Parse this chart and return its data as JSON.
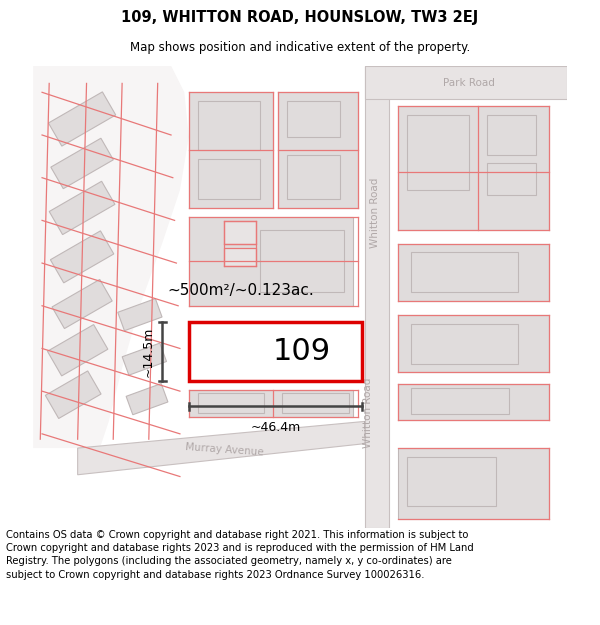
{
  "title_line1": "109, WHITTON ROAD, HOUNSLOW, TW3 2EJ",
  "title_line2": "Map shows position and indicative extent of the property.",
  "footer_text": "Contains OS data © Crown copyright and database right 2021. This information is subject to Crown copyright and database rights 2023 and is reproduced with the permission of HM Land Registry. The polygons (including the associated geometry, namely x, y co-ordinates) are subject to Crown copyright and database rights 2023 Ordnance Survey 100026316.",
  "property_label": "109",
  "area_label": "~500m²/~0.123ac.",
  "width_label": "~46.4m",
  "height_label": "~14.5m",
  "bg_color": "#ffffff",
  "map_bg": "#f7f5f5",
  "road_fill": "#e8e4e4",
  "building_fill": "#e0dcdc",
  "building_edge": "#c0b8b8",
  "red_line": "#e87878",
  "highlight_fill": "#ffffff",
  "highlight_edge": "#dd0000",
  "road_label_color": "#b0a8a8",
  "dim_line_color": "#444444",
  "title_fontsize": 10.5,
  "subtitle_fontsize": 8.5,
  "footer_fontsize": 7.2,
  "prop_label_fontsize": 22
}
